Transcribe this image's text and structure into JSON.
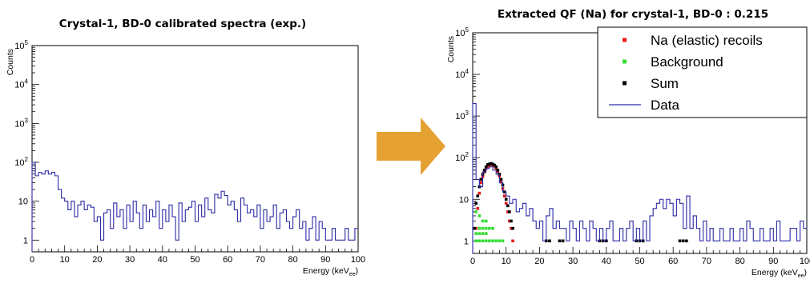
{
  "arrow_color": "#E6A133",
  "chart_data": [
    {
      "type": "histogram",
      "title": "Crystal-1, BD-0 calibrated spectra (exp.)",
      "xlabel": "Energy (keV",
      "xlabel_sub": "ee",
      "xlabel_close": ")",
      "ylabel": "Counts",
      "xlim": [
        0,
        100
      ],
      "ylim": [
        0.5,
        100000
      ],
      "yscale": "log",
      "x_ticks": [
        "0",
        "10",
        "20",
        "30",
        "40",
        "50",
        "60",
        "70",
        "80",
        "90",
        "100"
      ],
      "y_ticks": [
        {
          "base": "1",
          "exp": ""
        },
        {
          "base": "10",
          "exp": ""
        },
        {
          "base": "10",
          "exp": "2"
        },
        {
          "base": "10",
          "exp": "3"
        },
        {
          "base": "10",
          "exp": "4"
        },
        {
          "base": "10",
          "exp": "5"
        }
      ],
      "series": [
        {
          "style": "step",
          "color": "#2b2ba6",
          "bin_width": 1,
          "x": [
            0,
            1,
            2,
            3,
            4,
            5,
            6,
            7,
            8,
            9,
            10,
            11,
            12,
            13,
            14,
            15,
            16,
            17,
            18,
            19,
            20,
            21,
            22,
            23,
            24,
            25,
            26,
            27,
            28,
            29,
            30,
            31,
            32,
            33,
            34,
            35,
            36,
            37,
            38,
            39,
            40,
            41,
            42,
            43,
            44,
            45,
            46,
            47,
            48,
            49,
            50,
            51,
            52,
            53,
            54,
            55,
            56,
            57,
            58,
            59,
            60,
            61,
            62,
            63,
            64,
            65,
            66,
            67,
            68,
            69,
            70,
            71,
            72,
            73,
            74,
            75,
            76,
            77,
            78,
            79,
            80,
            81,
            82,
            83,
            84,
            85,
            86,
            87,
            88,
            89,
            90,
            91,
            92,
            93,
            94,
            95,
            96,
            97,
            98,
            99
          ],
          "values": [
            100,
            45,
            55,
            50,
            60,
            50,
            55,
            45,
            20,
            12,
            10,
            6,
            10,
            4,
            8,
            10,
            6,
            8,
            7,
            3,
            4,
            1,
            5,
            6,
            2,
            9,
            4,
            6,
            2,
            8,
            3,
            10,
            5,
            2,
            8,
            3,
            6,
            4,
            10,
            2,
            6,
            3,
            8,
            4,
            1,
            9,
            3,
            6,
            7,
            10,
            3,
            8,
            4,
            12,
            6,
            5,
            15,
            12,
            18,
            14,
            8,
            10,
            6,
            3,
            12,
            8,
            5,
            6,
            4,
            8,
            2,
            6,
            3,
            4,
            8,
            2,
            5,
            6,
            3,
            2,
            4,
            6,
            2,
            3,
            1,
            2,
            4,
            1,
            3,
            2,
            1,
            1,
            2,
            1,
            1,
            1,
            2,
            1,
            1,
            2
          ]
        }
      ]
    },
    {
      "type": "histogram",
      "title": "Extracted QF (Na) for crystal-1, BD-0 : 0.215",
      "xlabel": "Energy (keV",
      "xlabel_sub": "ee",
      "xlabel_close": ")",
      "ylabel": "Counts",
      "xlim": [
        0,
        100
      ],
      "ylim": [
        0.5,
        100000
      ],
      "yscale": "log",
      "x_ticks": [
        "0",
        "10",
        "20",
        "30",
        "40",
        "50",
        "60",
        "70",
        "80",
        "90",
        "100"
      ],
      "y_ticks": [
        {
          "base": "1",
          "exp": ""
        },
        {
          "base": "10",
          "exp": ""
        },
        {
          "base": "10",
          "exp": "2"
        },
        {
          "base": "10",
          "exp": "3"
        },
        {
          "base": "10",
          "exp": "4"
        },
        {
          "base": "10",
          "exp": "5"
        }
      ],
      "legend_position": "top-right",
      "series": [
        {
          "name": "Na (elastic) recoils",
          "style": "markers",
          "color": "#e31a1c",
          "x": [
            1,
            1.5,
            2,
            2.5,
            3,
            3.5,
            4,
            4.5,
            5,
            5.5,
            6,
            6.5,
            7,
            7.5,
            8,
            8.5,
            9,
            9.5,
            10,
            10.5,
            11,
            11.5,
            12
          ],
          "values": [
            2,
            6,
            14,
            25,
            35,
            45,
            55,
            62,
            66,
            68,
            67,
            63,
            56,
            46,
            36,
            26,
            18,
            12,
            8,
            5,
            3,
            2,
            1
          ]
        },
        {
          "name": "Background",
          "style": "markers",
          "color": "#33dd33",
          "x": [
            1,
            2,
            3,
            4,
            2,
            3,
            4,
            5,
            6,
            1,
            2,
            3,
            4,
            5,
            6,
            7,
            8,
            9,
            1,
            2,
            3,
            4
          ],
          "values": [
            5,
            4,
            3,
            3,
            2,
            2,
            2,
            2,
            2,
            1.5,
            1.5,
            1.5,
            1.5,
            1,
            1,
            1,
            1,
            1,
            1,
            1,
            1,
            1
          ]
        },
        {
          "name": "Sum",
          "style": "markers",
          "color": "#000000",
          "x": [
            0.5,
            1,
            1.5,
            2,
            2.5,
            3,
            3.5,
            4,
            4.5,
            5,
            5.5,
            6,
            6.5,
            7,
            7.5,
            8,
            8.5,
            9,
            9.5,
            10,
            10.5,
            11,
            11.5,
            12,
            22,
            23,
            26,
            27,
            38,
            39,
            40,
            49,
            50,
            51,
            62,
            63,
            64
          ],
          "values": [
            2,
            8,
            12,
            20,
            30,
            40,
            50,
            60,
            68,
            70,
            72,
            70,
            66,
            60,
            50,
            40,
            30,
            22,
            15,
            10,
            7,
            5,
            3,
            2,
            1,
            1,
            1,
            1,
            1,
            1,
            1,
            1,
            1,
            1,
            1,
            1,
            1
          ]
        },
        {
          "name": "Data",
          "style": "step",
          "color": "#2b2ba6",
          "bin_width": 1,
          "x": [
            0,
            1,
            2,
            3,
            4,
            5,
            6,
            7,
            8,
            9,
            10,
            11,
            12,
            13,
            14,
            15,
            16,
            17,
            18,
            19,
            20,
            21,
            22,
            23,
            24,
            25,
            26,
            27,
            28,
            29,
            30,
            31,
            32,
            33,
            34,
            35,
            36,
            37,
            38,
            39,
            40,
            41,
            42,
            43,
            44,
            45,
            46,
            47,
            48,
            49,
            50,
            51,
            52,
            53,
            54,
            55,
            56,
            57,
            58,
            59,
            60,
            61,
            62,
            63,
            64,
            65,
            66,
            67,
            68,
            69,
            70,
            71,
            72,
            73,
            74,
            75,
            76,
            77,
            78,
            79,
            80,
            81,
            82,
            83,
            84,
            85,
            86,
            87,
            88,
            89,
            90,
            91,
            92,
            93,
            94,
            95,
            96,
            97,
            98,
            99
          ],
          "values": [
            2000,
            30,
            20,
            45,
            55,
            60,
            50,
            40,
            25,
            15,
            12,
            8,
            10,
            5,
            6,
            8,
            4,
            6,
            3,
            2,
            3,
            1,
            4,
            6,
            2,
            3,
            2,
            2,
            1,
            3,
            2,
            1,
            3,
            2,
            1,
            3,
            2,
            1,
            2,
            1,
            2,
            3,
            1,
            1,
            2,
            1,
            2,
            3,
            1,
            2,
            1,
            3,
            1,
            4,
            6,
            8,
            10,
            6,
            10,
            8,
            4,
            10,
            8,
            2,
            12,
            2,
            4,
            2,
            1,
            3,
            1,
            2,
            1,
            1,
            2,
            1,
            1,
            2,
            1,
            1,
            2,
            1,
            3,
            2,
            1,
            1,
            2,
            1,
            1,
            2,
            1,
            3,
            1,
            1,
            1,
            2,
            2,
            1,
            3,
            2
          ]
        }
      ]
    }
  ]
}
